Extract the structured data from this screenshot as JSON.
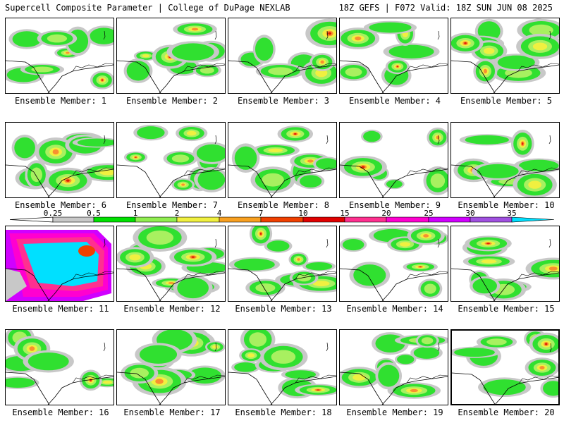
{
  "header": {
    "left": "Supercell Composite Parameter | College of DuPage NEXLAB",
    "right": "18Z GEFS | F072 Valid: 18Z SUN JUN 08 2025"
  },
  "colorbar": {
    "labels": [
      "0.25",
      "0.5",
      "1",
      "2",
      "4",
      "7",
      "10",
      "15",
      "20",
      "25",
      "30",
      "35"
    ],
    "colors": [
      "#c8c8c8",
      "#00e000",
      "#90ee50",
      "#f0f040",
      "#f8a020",
      "#f04000",
      "#e00000",
      "#ff3090",
      "#ff00d0",
      "#d000ff",
      "#a050e0",
      "#00e0ff"
    ]
  },
  "panels": [
    {
      "label": "Ensemble Member: 1"
    },
    {
      "label": "Ensemble Member: 2"
    },
    {
      "label": "Ensemble Member: 3"
    },
    {
      "label": "Ensemble Member: 4"
    },
    {
      "label": "Ensemble Member: 5"
    },
    {
      "label": "Ensemble Member: 6"
    },
    {
      "label": "Ensemble Member: 7"
    },
    {
      "label": "Ensemble Member: 8"
    },
    {
      "label": "Ensemble Member: 9"
    },
    {
      "label": "Ensemble Member: 10"
    },
    {
      "label": "Ensemble Member: 11"
    },
    {
      "label": "Ensemble Member: 12"
    },
    {
      "label": "Ensemble Member: 13"
    },
    {
      "label": "Ensemble Member: 14"
    },
    {
      "label": "Ensemble Member: 15"
    },
    {
      "label": "Ensemble Member: 16"
    },
    {
      "label": "Ensemble Member: 17"
    },
    {
      "label": "Ensemble Member: 18"
    },
    {
      "label": "Ensemble Member: 19"
    },
    {
      "label": "Ensemble Member: 20"
    }
  ]
}
